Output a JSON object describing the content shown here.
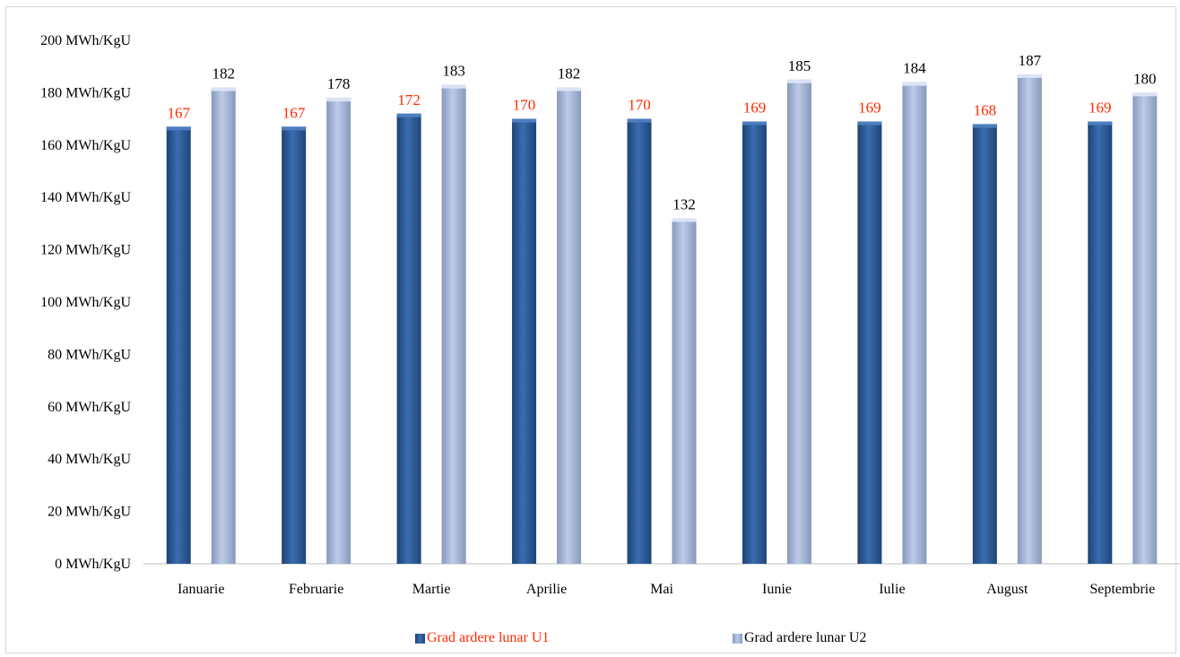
{
  "chart_data": {
    "type": "bar",
    "title": "",
    "xlabel": "",
    "ylabel": "",
    "unit": "MWh/KgU",
    "categories": [
      "Ianuarie",
      "Februarie",
      "Martie",
      "Aprilie",
      "Mai",
      "Iunie",
      "Iulie",
      "August",
      "Septembrie"
    ],
    "series": [
      {
        "name": "Grad ardere lunar U1",
        "values": [
          167,
          167,
          172,
          170,
          170,
          169,
          169,
          168,
          169
        ],
        "color": "#2e5c9a",
        "label_color": "#ff2a00"
      },
      {
        "name": "Grad ardere lunar U2",
        "values": [
          182,
          178,
          183,
          182,
          132,
          185,
          184,
          187,
          180
        ],
        "color": "#a4b8dc",
        "label_color": "#000000"
      }
    ],
    "yticks": [
      "0 MWh/KgU",
      "20 MWh/KgU",
      "40 MWh/KgU",
      "60 MWh/KgU",
      "80 MWh/KgU",
      "100 MWh/KgU",
      "120 MWh/KgU",
      "140 MWh/KgU",
      "160 MWh/KgU",
      "180 MWh/KgU",
      "200 MWh/KgU"
    ],
    "ylim": [
      0,
      200
    ],
    "grid": false,
    "legend_position": "bottom"
  }
}
